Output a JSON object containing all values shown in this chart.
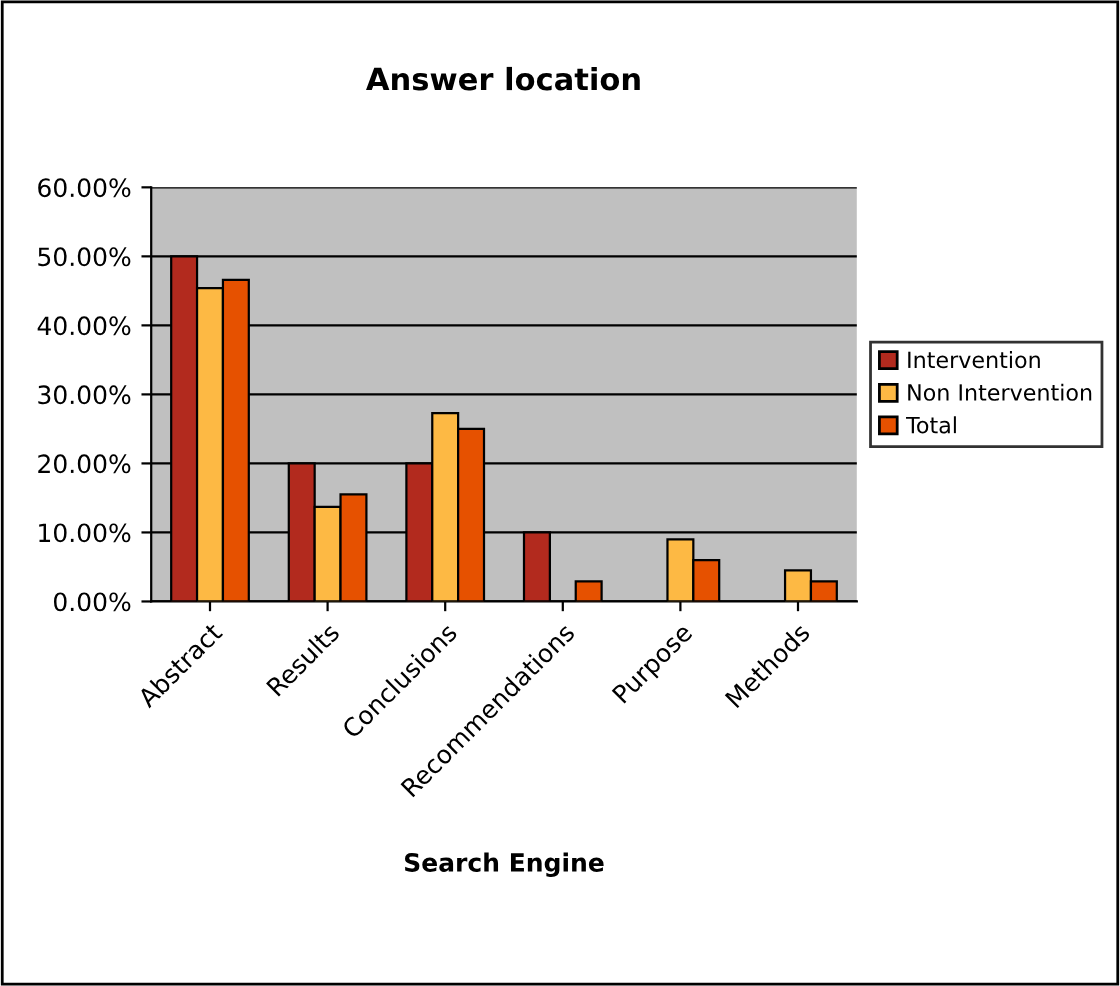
{
  "chart_data": {
    "type": "bar",
    "title": "Answer location",
    "xlabel": "Search Engine",
    "categories": [
      "Abstract",
      "Results",
      "Conclusions",
      "Recommendations",
      "Purpose",
      "Methods"
    ],
    "series": [
      {
        "name": "Intervention",
        "color": "#b22a1e",
        "values": [
          50,
          20,
          20,
          10,
          null,
          null
        ]
      },
      {
        "name": "Non Intervention",
        "color": "#fdb944",
        "values": [
          45.4,
          13.7,
          27.3,
          null,
          9.0,
          4.5
        ]
      },
      {
        "name": "Total",
        "color": "#e65100",
        "values": [
          46.6,
          15.5,
          25.0,
          2.9,
          6.0,
          2.9
        ]
      }
    ],
    "ylim": [
      0,
      60
    ],
    "yticks": [
      {
        "value": 0,
        "label": "0.00%"
      },
      {
        "value": 10,
        "label": "10.00%"
      },
      {
        "value": 20,
        "label": "20.00%"
      },
      {
        "value": 30,
        "label": "30.00%"
      },
      {
        "value": 40,
        "label": "40.00%"
      },
      {
        "value": 50,
        "label": "50.00%"
      },
      {
        "value": 60,
        "label": "60.00%"
      }
    ],
    "grid": "y",
    "legend": "right"
  }
}
